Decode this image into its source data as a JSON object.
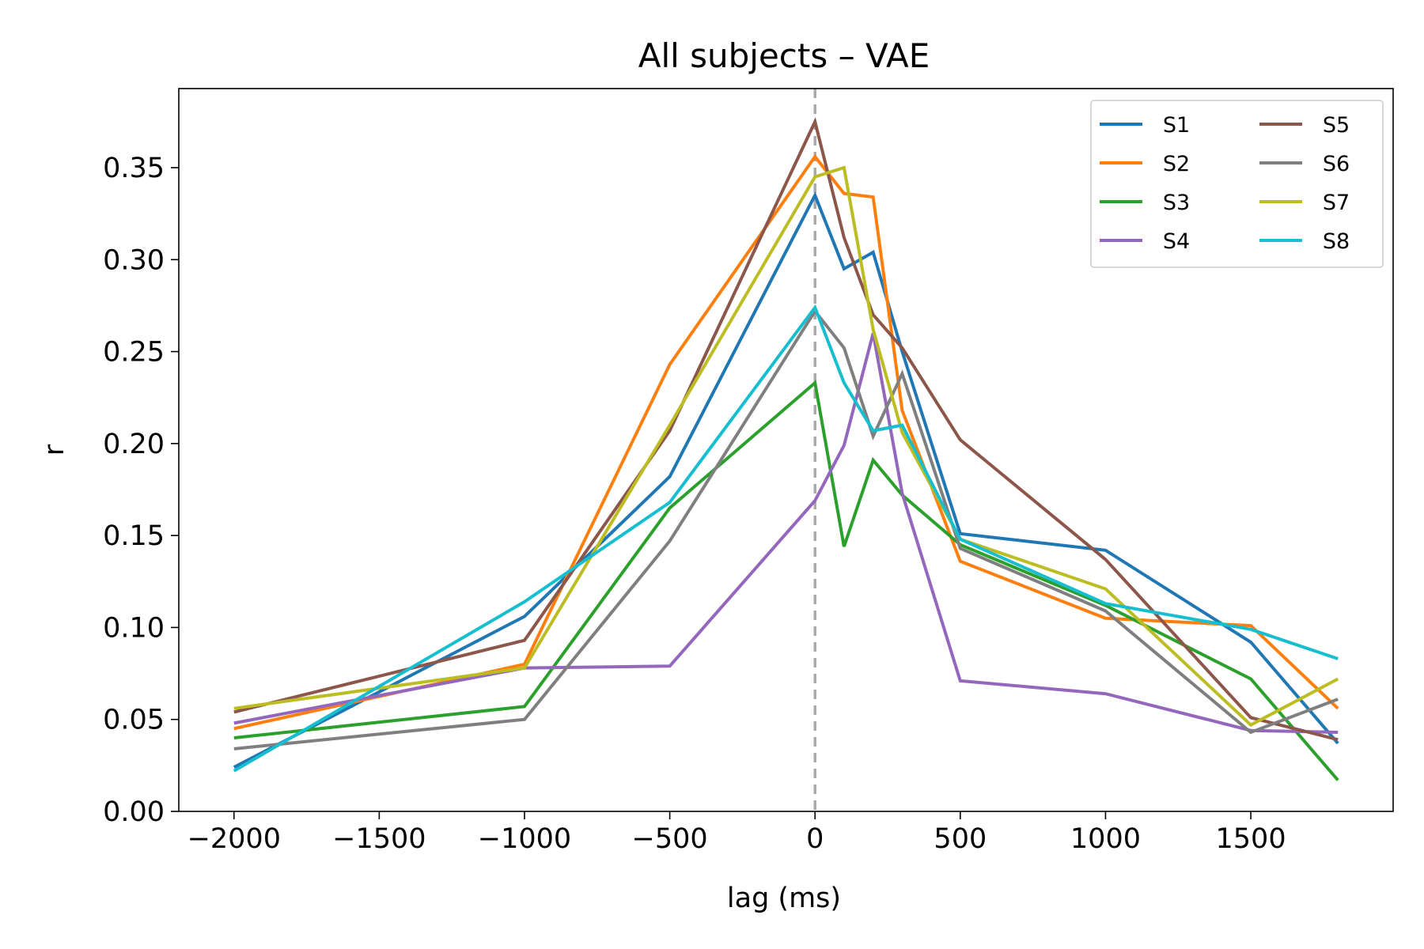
{
  "chart_data": {
    "type": "line",
    "title": "All subjects – VAE",
    "xlabel": "lag (ms)",
    "ylabel": "r",
    "xlim": [
      -2190,
      1990
    ],
    "ylim": [
      0,
      0.393
    ],
    "xticks": [
      -2000,
      -1500,
      -1000,
      -500,
      0,
      500,
      1000,
      1500
    ],
    "xtick_labels": [
      "−2000",
      "−1500",
      "−1000",
      "−500",
      "0",
      "500",
      "1000",
      "1500"
    ],
    "yticks": [
      0.0,
      0.05,
      0.1,
      0.15,
      0.2,
      0.25,
      0.3,
      0.35
    ],
    "ytick_labels": [
      "0.00",
      "0.05",
      "0.10",
      "0.15",
      "0.20",
      "0.25",
      "0.30",
      "0.35"
    ],
    "grid": false,
    "legend_position": "top-right",
    "legend_columns": 2,
    "reference_line": {
      "x": 0,
      "color": "#aaaaaa",
      "style": "dashed"
    },
    "x": [
      -2000,
      -1000,
      -500,
      0,
      100,
      200,
      300,
      500,
      1000,
      1500,
      1800
    ],
    "series": [
      {
        "name": "S1",
        "color": "#1f77b4",
        "values": [
          0.024,
          0.106,
          0.182,
          0.335,
          0.295,
          0.304,
          0.25,
          0.151,
          0.142,
          0.092,
          0.037
        ]
      },
      {
        "name": "S2",
        "color": "#ff7f0e",
        "values": [
          0.045,
          0.08,
          0.243,
          0.356,
          0.336,
          0.334,
          0.218,
          0.136,
          0.105,
          0.101,
          0.056
        ]
      },
      {
        "name": "S3",
        "color": "#2ca02c",
        "values": [
          0.04,
          0.057,
          0.165,
          0.233,
          0.144,
          0.191,
          0.172,
          0.145,
          0.112,
          0.072,
          0.017
        ]
      },
      {
        "name": "S4",
        "color": "#9467bd",
        "values": [
          0.048,
          0.078,
          0.079,
          0.169,
          0.199,
          0.26,
          0.173,
          0.071,
          0.064,
          0.044,
          0.043
        ]
      },
      {
        "name": "S5",
        "color": "#8c564b",
        "values": [
          0.054,
          0.093,
          0.207,
          0.375,
          0.312,
          0.27,
          0.252,
          0.202,
          0.137,
          0.051,
          0.039
        ]
      },
      {
        "name": "S6",
        "color": "#7f7f7f",
        "values": [
          0.034,
          0.05,
          0.147,
          0.272,
          0.252,
          0.204,
          0.238,
          0.143,
          0.109,
          0.043,
          0.061
        ]
      },
      {
        "name": "S7",
        "color": "#bcbd22",
        "values": [
          0.056,
          0.078,
          0.21,
          0.345,
          0.35,
          0.262,
          0.206,
          0.148,
          0.121,
          0.047,
          0.072
        ]
      },
      {
        "name": "S8",
        "color": "#17becf",
        "values": [
          0.022,
          0.114,
          0.168,
          0.274,
          0.233,
          0.207,
          0.21,
          0.148,
          0.113,
          0.099,
          0.083
        ]
      }
    ]
  }
}
